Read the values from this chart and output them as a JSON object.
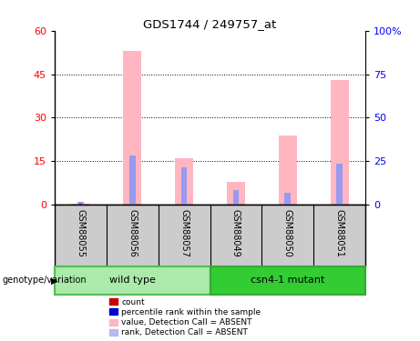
{
  "title": "GDS1744 / 249757_at",
  "samples": [
    "GSM88055",
    "GSM88056",
    "GSM88057",
    "GSM88049",
    "GSM88050",
    "GSM88051"
  ],
  "groups": [
    "wild type",
    "wild type",
    "wild type",
    "csn4-1 mutant",
    "csn4-1 mutant",
    "csn4-1 mutant"
  ],
  "group_labels": [
    "wild type",
    "csn4-1 mutant"
  ],
  "group_colors_light": [
    "#90ee90",
    "#90ee90"
  ],
  "group_colors_dark": [
    "#4cbb4c",
    "#4cbb4c"
  ],
  "pink_values": [
    0.3,
    53,
    16,
    8,
    24,
    43
  ],
  "blue_rank_values": [
    0.8,
    17,
    13,
    5,
    4,
    14
  ],
  "ylim_left": [
    0,
    60
  ],
  "ylim_right": [
    0,
    100
  ],
  "yticks_left": [
    0,
    15,
    30,
    45,
    60
  ],
  "ytick_labels_left": [
    "0",
    "15",
    "30",
    "45",
    "60"
  ],
  "yticks_right": [
    0,
    25,
    50,
    75,
    100
  ],
  "ytick_labels_right": [
    "0",
    "25",
    "50",
    "75",
    "100%"
  ],
  "pink_color": "#ffb6c1",
  "blue_color": "#9999ee",
  "red_color": "#cc0000",
  "sample_area_color": "#cccccc",
  "wt_color": "#aaeaaa",
  "csn_color": "#33cc33",
  "legend_labels": [
    "count",
    "percentile rank within the sample",
    "value, Detection Call = ABSENT",
    "rank, Detection Call = ABSENT"
  ],
  "legend_colors": [
    "#cc0000",
    "#0000cc",
    "#ffb6c1",
    "#b8b8ee"
  ],
  "genotype_label": "genotype/variation"
}
